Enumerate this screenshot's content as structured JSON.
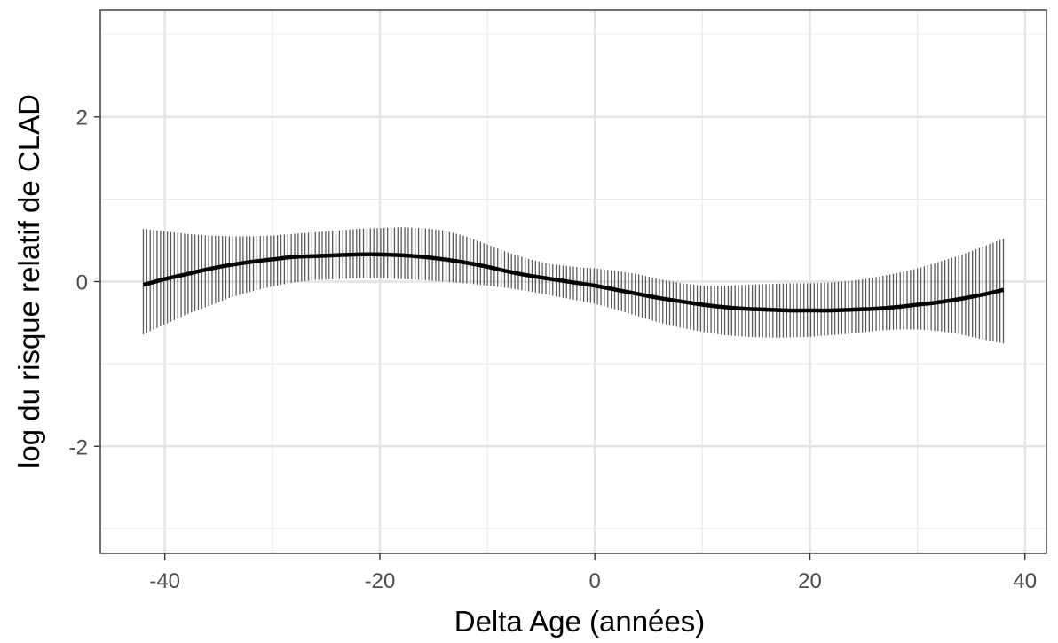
{
  "chart_data": {
    "type": "line",
    "title": "",
    "xlabel": "Delta Age (années)",
    "ylabel": "log du risque relatif de CLAD",
    "xlim": [
      -46,
      42
    ],
    "ylim": [
      -3.3,
      3.3
    ],
    "x_ticks": [
      -40,
      -20,
      0,
      20,
      40
    ],
    "x_tick_labels": [
      "-40",
      "-20",
      "0",
      "20",
      "40"
    ],
    "y_ticks": [
      -2,
      0,
      2
    ],
    "y_tick_labels": [
      "-2",
      "0",
      "2"
    ],
    "grid": true,
    "series": [
      {
        "x": [
          -42,
          -40,
          -38,
          -36,
          -34,
          -32,
          -30,
          -28,
          -26,
          -24,
          -22,
          -20,
          -18,
          -16,
          -14,
          -12,
          -10,
          -8,
          -6,
          -4,
          -2,
          0,
          2,
          4,
          6,
          8,
          10,
          12,
          14,
          16,
          18,
          20,
          22,
          24,
          26,
          28,
          30,
          32,
          34,
          36,
          38
        ],
        "y": [
          -0.04,
          0.03,
          0.09,
          0.15,
          0.2,
          0.24,
          0.27,
          0.3,
          0.31,
          0.32,
          0.33,
          0.33,
          0.32,
          0.3,
          0.27,
          0.23,
          0.18,
          0.12,
          0.07,
          0.03,
          -0.01,
          -0.05,
          -0.1,
          -0.15,
          -0.2,
          -0.24,
          -0.28,
          -0.31,
          -0.33,
          -0.34,
          -0.35,
          -0.35,
          -0.35,
          -0.34,
          -0.33,
          -0.31,
          -0.28,
          -0.25,
          -0.21,
          -0.16,
          -0.1
        ],
        "lower": [
          -0.64,
          -0.52,
          -0.4,
          -0.3,
          -0.2,
          -0.12,
          -0.06,
          -0.01,
          0.02,
          0.03,
          0.04,
          0.04,
          0.03,
          0.02,
          0.0,
          -0.02,
          -0.05,
          -0.08,
          -0.12,
          -0.17,
          -0.22,
          -0.27,
          -0.34,
          -0.42,
          -0.5,
          -0.56,
          -0.61,
          -0.65,
          -0.67,
          -0.68,
          -0.68,
          -0.67,
          -0.65,
          -0.63,
          -0.6,
          -0.58,
          -0.58,
          -0.6,
          -0.64,
          -0.7,
          -0.75
        ],
        "upper": [
          0.64,
          0.61,
          0.58,
          0.56,
          0.55,
          0.55,
          0.56,
          0.58,
          0.6,
          0.62,
          0.64,
          0.65,
          0.66,
          0.65,
          0.62,
          0.55,
          0.45,
          0.35,
          0.27,
          0.21,
          0.18,
          0.16,
          0.13,
          0.09,
          0.03,
          -0.02,
          -0.05,
          -0.05,
          -0.04,
          -0.03,
          -0.02,
          -0.02,
          -0.01,
          0.01,
          0.05,
          0.1,
          0.16,
          0.24,
          0.32,
          0.42,
          0.52
        ]
      }
    ]
  }
}
